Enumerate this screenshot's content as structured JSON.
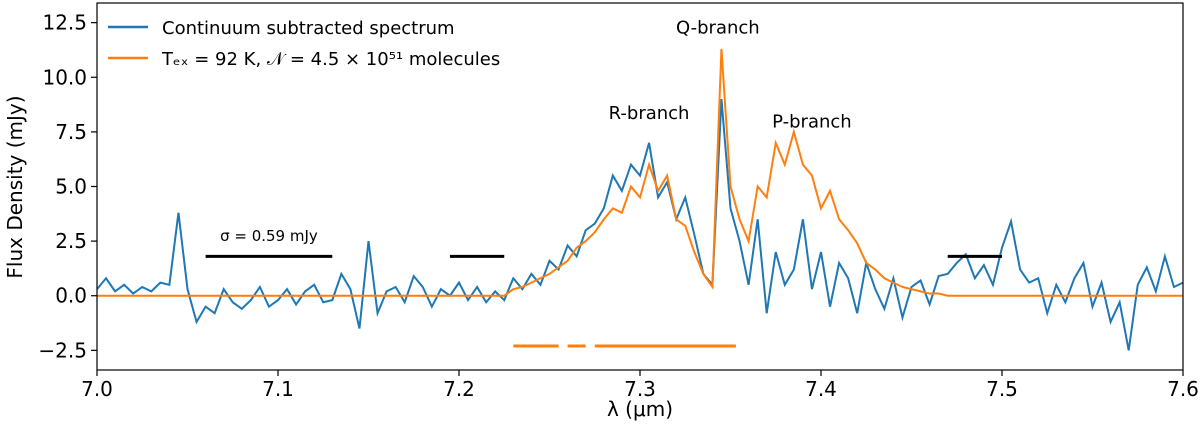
{
  "chart_data": {
    "type": "line",
    "xlabel": "λ (μm)",
    "ylabel": "Flux Density (mJy)",
    "xlim": [
      7.0,
      7.6
    ],
    "ylim": [
      -3.4,
      13.4
    ],
    "xticks": [
      {
        "value": 7.0,
        "label": "7.0"
      },
      7.1,
      7.2,
      7.3,
      7.4,
      7.5,
      7.6
    ],
    "yticks": [
      {
        "value": -2.5,
        "label": "−2.5"
      },
      {
        "value": 0,
        "label": "0.0"
      },
      2.5,
      {
        "value": 5,
        "label": "5.0"
      },
      7.5,
      {
        "value": 10,
        "label": "10.0"
      },
      12.5
    ],
    "legend": "upper left",
    "x": [
      7.0,
      7.005,
      7.01,
      7.015,
      7.02,
      7.025,
      7.03,
      7.035,
      7.04,
      7.045,
      7.05,
      7.055,
      7.06,
      7.065,
      7.07,
      7.075,
      7.08,
      7.085,
      7.09,
      7.095,
      7.1,
      7.105,
      7.11,
      7.115,
      7.12,
      7.125,
      7.13,
      7.135,
      7.14,
      7.145,
      7.15,
      7.155,
      7.16,
      7.165,
      7.17,
      7.175,
      7.18,
      7.185,
      7.19,
      7.195,
      7.2,
      7.205,
      7.21,
      7.215,
      7.22,
      7.225,
      7.23,
      7.235,
      7.24,
      7.245,
      7.25,
      7.255,
      7.26,
      7.265,
      7.27,
      7.275,
      7.28,
      7.285,
      7.29,
      7.295,
      7.3,
      7.305,
      7.31,
      7.315,
      7.32,
      7.325,
      7.33,
      7.335,
      7.34,
      7.345,
      7.35,
      7.355,
      7.36,
      7.365,
      7.37,
      7.375,
      7.38,
      7.385,
      7.39,
      7.395,
      7.4,
      7.405,
      7.41,
      7.415,
      7.42,
      7.425,
      7.43,
      7.435,
      7.44,
      7.445,
      7.45,
      7.455,
      7.46,
      7.465,
      7.47,
      7.475,
      7.48,
      7.485,
      7.49,
      7.495,
      7.5,
      7.505,
      7.51,
      7.515,
      7.52,
      7.525,
      7.53,
      7.535,
      7.54,
      7.545,
      7.55,
      7.555,
      7.56,
      7.565,
      7.57,
      7.575,
      7.58,
      7.585,
      7.59,
      7.595,
      7.6
    ],
    "series": [
      {
        "name": "Continuum subtracted spectrum",
        "color": "#1f77b4",
        "values": [
          0.3,
          0.8,
          0.2,
          0.5,
          0.1,
          0.4,
          0.2,
          0.6,
          0.5,
          3.8,
          0.3,
          -1.2,
          -0.5,
          -0.8,
          0.3,
          -0.3,
          -0.6,
          -0.2,
          0.4,
          -0.5,
          -0.2,
          0.3,
          -0.4,
          0.2,
          0.5,
          -0.3,
          -0.2,
          1.0,
          0.3,
          -1.5,
          2.5,
          -0.8,
          0.2,
          0.4,
          -0.3,
          0.9,
          0.4,
          -0.5,
          0.3,
          0.0,
          0.6,
          -0.2,
          0.4,
          -0.3,
          0.2,
          -0.2,
          0.8,
          0.3,
          1.0,
          0.5,
          1.6,
          1.2,
          2.3,
          1.8,
          3.0,
          3.3,
          4.0,
          5.5,
          4.8,
          6.0,
          5.5,
          7.0,
          4.5,
          5.2,
          3.5,
          4.5,
          2.8,
          1.0,
          0.5,
          9.0,
          4.0,
          2.5,
          0.5,
          3.5,
          -0.8,
          2.0,
          0.5,
          1.2,
          3.5,
          0.3,
          2.0,
          -0.5,
          1.5,
          0.8,
          -0.8,
          1.5,
          0.3,
          -0.6,
          0.8,
          -1.0,
          0.4,
          0.7,
          -0.4,
          0.9,
          1.0,
          1.5,
          1.9,
          0.8,
          1.4,
          0.5,
          2.2,
          3.4,
          1.2,
          0.6,
          0.8,
          -0.8,
          0.5,
          -0.3,
          0.8,
          1.5,
          -0.5,
          0.6,
          -1.2,
          -0.3,
          -2.5,
          0.5,
          1.3,
          0.2,
          1.8,
          0.4,
          0.6
        ]
      },
      {
        "name": "Tₑₓ = 92 K, 𝒩 = 4.5 × 10⁵¹ molecules",
        "color": "#ff7f0e",
        "values": [
          0,
          0,
          0,
          0,
          0,
          0,
          0,
          0,
          0,
          0,
          0,
          0,
          0,
          0,
          0,
          0,
          0,
          0,
          0,
          0,
          0,
          0,
          0,
          0,
          0,
          0,
          0,
          0,
          0,
          0,
          0,
          0,
          0,
          0,
          0,
          0,
          0,
          0,
          0,
          0,
          0,
          0,
          0,
          0,
          0,
          0,
          0.3,
          0.4,
          0.6,
          0.8,
          1.0,
          1.3,
          1.6,
          2.2,
          2.5,
          2.9,
          3.5,
          4.0,
          3.8,
          5.0,
          4.5,
          6.0,
          4.8,
          5.5,
          3.5,
          3.2,
          2.0,
          1.0,
          0.4,
          11.3,
          5.0,
          3.5,
          2.5,
          5.0,
          4.5,
          7.0,
          6.0,
          7.5,
          6.0,
          5.5,
          4.0,
          4.8,
          3.5,
          3.0,
          2.4,
          1.5,
          1.2,
          0.8,
          0.6,
          0.4,
          0.3,
          0.2,
          0.1,
          0.1,
          0,
          0,
          0,
          0,
          0,
          0,
          0,
          0,
          0,
          0,
          0,
          0,
          0,
          0,
          0,
          0,
          0,
          0,
          0,
          0,
          0,
          0,
          0,
          0,
          0,
          0,
          0
        ]
      }
    ],
    "segments": [
      {
        "color": "#000000",
        "y": 1.8,
        "ranges": [
          [
            7.06,
            7.13
          ],
          [
            7.195,
            7.225
          ],
          [
            7.47,
            7.5
          ]
        ]
      },
      {
        "color": "#ff7f0e",
        "y": -2.3,
        "ranges": [
          [
            7.23,
            7.255
          ],
          [
            7.26,
            7.27
          ],
          [
            7.275,
            7.353
          ]
        ]
      }
    ],
    "annotations": [
      {
        "text": "R-branch",
        "x": 7.305,
        "y": 8.1
      },
      {
        "text": "Q-branch",
        "x": 7.343,
        "y": 12.0
      },
      {
        "text": "P-branch",
        "x": 7.395,
        "y": 7.7
      },
      {
        "text": "σ = 0.59 mJy",
        "x": 7.095,
        "y": 2.5
      }
    ]
  }
}
